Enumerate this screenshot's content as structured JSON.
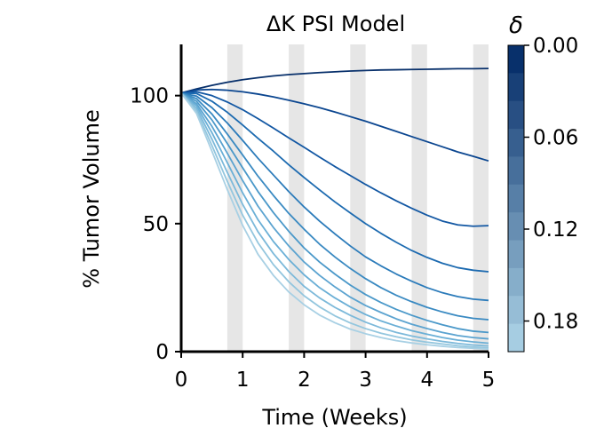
{
  "chart_data": {
    "type": "line",
    "title": "ΔK PSI Model",
    "xlabel": "Time (Weeks)",
    "ylabel": "% Tumor Volume",
    "xlim": [
      0,
      5
    ],
    "ylim": [
      0,
      120
    ],
    "x_ticks": [
      0,
      1,
      2,
      3,
      4,
      5
    ],
    "y_ticks": [
      0,
      50,
      100
    ],
    "x_tick_labels": [
      "0",
      "1",
      "2",
      "3",
      "4",
      "5"
    ],
    "y_tick_labels": [
      "0",
      "50",
      "100"
    ],
    "grid": false,
    "shaded_intervals": [
      [
        0.75,
        1.0
      ],
      [
        1.75,
        2.0
      ],
      [
        2.75,
        3.0
      ],
      [
        3.75,
        4.0
      ],
      [
        4.75,
        5.0
      ]
    ],
    "colorbar": {
      "title": "δ",
      "range": [
        0.0,
        0.2
      ],
      "ticks": [
        0.0,
        0.06,
        0.12,
        0.18
      ],
      "tick_labels": [
        "0.00",
        "0.06",
        "0.12",
        "0.18"
      ],
      "dark_color": "#08306b",
      "light_color": "#a6cde2"
    },
    "x": [
      0,
      0.25,
      0.5,
      0.75,
      1.0,
      1.25,
      1.5,
      1.75,
      2.0,
      2.25,
      2.5,
      2.75,
      3.0,
      3.25,
      3.5,
      3.75,
      4.0,
      4.25,
      4.5,
      4.75,
      5.0
    ],
    "series": [
      {
        "delta": 0.0,
        "color": "#08306b",
        "values": [
          101,
          102.6,
          104.0,
          105.2,
          106.2,
          107.0,
          107.7,
          108.2,
          108.6,
          109.0,
          109.3,
          109.6,
          109.8,
          110.0,
          110.1,
          110.2,
          110.3,
          110.4,
          110.5,
          110.5,
          110.6
        ]
      },
      {
        "delta": 0.02,
        "color": "#0b4690",
        "values": [
          101,
          102.2,
          102.4,
          102.1,
          101.5,
          100.6,
          99.5,
          98.2,
          96.8,
          95.3,
          93.6,
          91.8,
          90.0,
          88.0,
          86.0,
          84.0,
          82.0,
          80.0,
          78.0,
          76.3,
          74.5
        ]
      },
      {
        "delta": 0.04,
        "color": "#1257a3",
        "values": [
          101,
          101.5,
          100.0,
          97.5,
          94.5,
          91.0,
          87.3,
          83.5,
          79.8,
          76.0,
          72.3,
          68.8,
          65.3,
          62.0,
          58.9,
          56.0,
          53.3,
          51.0,
          49.5,
          49.0,
          49.2
        ]
      },
      {
        "delta": 0.06,
        "color": "#1c6ab0",
        "values": [
          101,
          100.8,
          97.8,
          93.5,
          88.5,
          83.3,
          78.3,
          73.0,
          68.0,
          63.2,
          58.5,
          54.2,
          50.0,
          46.2,
          42.7,
          39.5,
          36.8,
          34.5,
          32.8,
          31.8,
          31.2
        ]
      },
      {
        "delta": 0.08,
        "color": "#2b7bba",
        "values": [
          101,
          99.8,
          95.3,
          89.3,
          82.5,
          75.5,
          69.0,
          62.5,
          56.5,
          51.0,
          46.0,
          41.3,
          37.0,
          33.5,
          30.3,
          27.5,
          25.0,
          23.0,
          21.5,
          20.5,
          20.0
        ]
      },
      {
        "delta": 0.1,
        "color": "#3a8ac2",
        "values": [
          101,
          98.8,
          92.8,
          85.0,
          76.8,
          68.5,
          61.0,
          54.0,
          47.8,
          42.0,
          37.0,
          32.5,
          28.5,
          25.0,
          22.0,
          19.5,
          17.3,
          15.5,
          14.0,
          13.0,
          12.5
        ]
      },
      {
        "delta": 0.12,
        "color": "#4a98c9",
        "values": [
          101,
          97.8,
          90.5,
          81.3,
          71.8,
          62.5,
          54.3,
          47.0,
          40.5,
          35.0,
          30.3,
          26.0,
          22.3,
          19.2,
          16.5,
          14.2,
          12.2,
          10.5,
          9.0,
          8.0,
          7.5
        ]
      },
      {
        "delta": 0.14,
        "color": "#5ba3d0",
        "values": [
          101,
          96.8,
          88.0,
          77.5,
          66.8,
          56.8,
          48.5,
          41.3,
          35.0,
          29.8,
          25.3,
          21.3,
          18.0,
          15.3,
          12.8,
          10.7,
          9.0,
          7.5,
          6.3,
          5.5,
          5.0
        ]
      },
      {
        "delta": 0.16,
        "color": "#6aafd6",
        "values": [
          101,
          96.0,
          85.5,
          73.8,
          62.0,
          51.5,
          43.0,
          36.0,
          30.0,
          25.0,
          21.0,
          17.5,
          14.5,
          12.0,
          10.0,
          8.2,
          6.8,
          5.5,
          4.5,
          3.8,
          3.3
        ]
      },
      {
        "delta": 0.18,
        "color": "#7cb9da",
        "values": [
          101,
          95.0,
          83.0,
          70.0,
          57.5,
          46.8,
          38.3,
          31.3,
          25.5,
          21.0,
          17.3,
          14.2,
          11.5,
          9.3,
          7.5,
          6.1,
          5.0,
          4.0,
          3.2,
          2.6,
          2.2
        ]
      },
      {
        "delta": 0.2,
        "color": "#93c6de",
        "values": [
          101,
          94.0,
          80.5,
          66.5,
          53.3,
          42.5,
          34.0,
          27.3,
          21.8,
          17.5,
          14.0,
          11.2,
          9.0,
          7.2,
          5.8,
          4.6,
          3.7,
          3.0,
          2.3,
          1.8,
          1.4
        ]
      },
      {
        "delta": 0.22,
        "color": "#a8d0e4",
        "values": [
          101,
          93.0,
          78.3,
          63.3,
          49.3,
          38.0,
          29.8,
          23.3,
          18.3,
          14.3,
          11.3,
          8.8,
          7.0,
          5.5,
          4.3,
          3.4,
          2.7,
          2.1,
          1.6,
          1.3,
          1.0
        ]
      }
    ]
  }
}
